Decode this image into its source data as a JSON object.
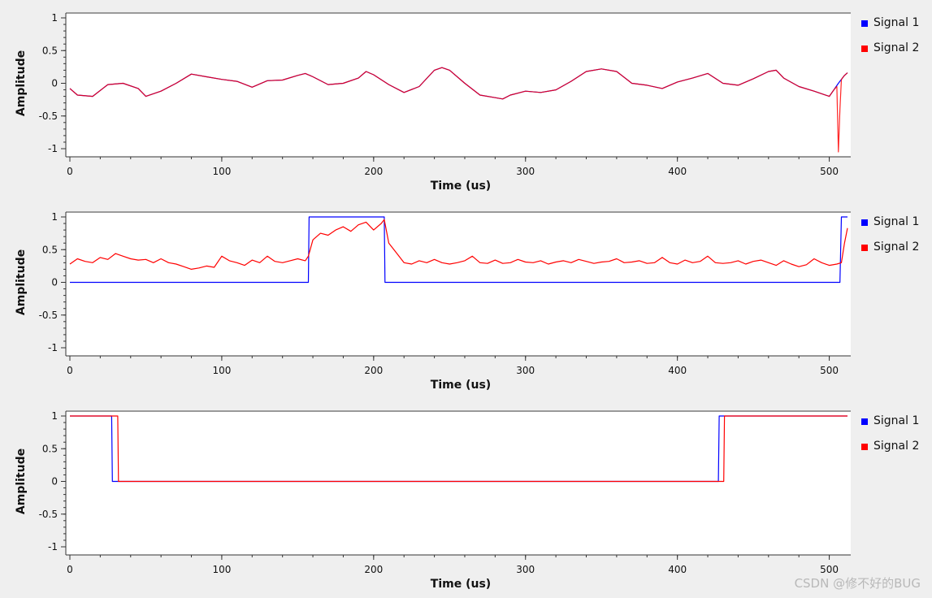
{
  "chart_data": [
    {
      "type": "line",
      "xlabel": "Time (us)",
      "ylabel": "Amplitude",
      "xlim": [
        0,
        512
      ],
      "ylim": [
        -1,
        1
      ],
      "xticks": [
        0,
        100,
        200,
        300,
        400,
        500
      ],
      "yticks": [
        1,
        0.5,
        0,
        -0.5,
        -1
      ],
      "ytick_labels": [
        "1",
        "0.5",
        "0",
        "-0.5",
        "-1"
      ],
      "legend_position": "right",
      "series": [
        {
          "name": "Signal 1",
          "color": "#0000ff",
          "x": [
            0,
            5,
            15,
            25,
            35,
            45,
            50,
            60,
            70,
            80,
            90,
            100,
            110,
            120,
            130,
            140,
            150,
            155,
            160,
            170,
            180,
            190,
            195,
            200,
            210,
            220,
            230,
            240,
            245,
            250,
            260,
            270,
            280,
            285,
            290,
            300,
            310,
            320,
            330,
            340,
            350,
            360,
            370,
            380,
            390,
            400,
            410,
            420,
            430,
            440,
            450,
            460,
            465,
            470,
            480,
            490,
            500,
            503,
            506,
            508,
            510,
            512
          ],
          "y": [
            -0.08,
            -0.18,
            -0.2,
            -0.02,
            0,
            -0.08,
            -0.2,
            -0.12,
            0,
            0.14,
            0.1,
            0.06,
            0.03,
            -0.06,
            0.04,
            0.05,
            0.12,
            0.15,
            0.1,
            -0.02,
            0.0,
            0.08,
            0.18,
            0.13,
            -0.02,
            -0.14,
            -0.05,
            0.2,
            0.24,
            0.2,
            0.0,
            -0.18,
            -0.22,
            -0.24,
            -0.18,
            -0.12,
            -0.14,
            -0.1,
            0.03,
            0.18,
            0.22,
            0.18,
            0.0,
            -0.03,
            -0.08,
            0.02,
            0.08,
            0.15,
            0.0,
            -0.03,
            0.07,
            0.18,
            0.2,
            0.08,
            -0.05,
            -0.12,
            -0.2,
            -0.1,
            0.0,
            0.06,
            0.12,
            0.16
          ]
        },
        {
          "name": "Signal 2",
          "color": "#ff0000",
          "x": [
            0,
            5,
            15,
            25,
            35,
            45,
            50,
            60,
            70,
            80,
            90,
            100,
            110,
            120,
            130,
            140,
            150,
            155,
            160,
            170,
            180,
            190,
            195,
            200,
            210,
            220,
            230,
            240,
            245,
            250,
            260,
            270,
            280,
            285,
            290,
            300,
            310,
            320,
            330,
            340,
            350,
            360,
            370,
            380,
            390,
            400,
            410,
            420,
            430,
            440,
            450,
            460,
            465,
            470,
            480,
            490,
            500,
            503,
            505,
            506,
            507,
            508,
            510,
            512
          ],
          "y": [
            -0.08,
            -0.18,
            -0.2,
            -0.02,
            0,
            -0.08,
            -0.2,
            -0.12,
            0,
            0.14,
            0.1,
            0.06,
            0.03,
            -0.06,
            0.04,
            0.05,
            0.12,
            0.15,
            0.1,
            -0.02,
            0.0,
            0.08,
            0.18,
            0.13,
            -0.02,
            -0.14,
            -0.05,
            0.2,
            0.24,
            0.2,
            0.0,
            -0.18,
            -0.22,
            -0.24,
            -0.18,
            -0.12,
            -0.14,
            -0.1,
            0.03,
            0.18,
            0.22,
            0.18,
            0.0,
            -0.03,
            -0.08,
            0.02,
            0.08,
            0.15,
            0.0,
            -0.03,
            0.07,
            0.18,
            0.2,
            0.08,
            -0.05,
            -0.12,
            -0.2,
            -0.1,
            -0.05,
            -1.05,
            -0.4,
            0.06,
            0.12,
            0.16
          ]
        }
      ]
    },
    {
      "type": "line",
      "xlabel": "Time (us)",
      "ylabel": "Amplitude",
      "xlim": [
        0,
        512
      ],
      "ylim": [
        -1,
        1
      ],
      "xticks": [
        0,
        100,
        200,
        300,
        400,
        500
      ],
      "yticks": [
        1,
        0.5,
        0,
        -0.5,
        -1
      ],
      "ytick_labels": [
        "1",
        "0.5",
        "0",
        "-0.5",
        "-1"
      ],
      "legend_position": "right",
      "series": [
        {
          "name": "Signal 1",
          "color": "#0000ff",
          "x": [
            0,
            157,
            157.5,
            207,
            207.5,
            507,
            508,
            512
          ],
          "y": [
            0,
            0,
            1,
            1,
            0,
            0,
            1,
            1
          ]
        },
        {
          "name": "Signal 2",
          "color": "#ff0000",
          "x": [
            0,
            5,
            10,
            15,
            20,
            25,
            30,
            35,
            40,
            45,
            50,
            55,
            60,
            65,
            70,
            75,
            80,
            85,
            90,
            95,
            100,
            105,
            110,
            115,
            120,
            125,
            130,
            135,
            140,
            145,
            150,
            155,
            157,
            160,
            165,
            170,
            175,
            180,
            185,
            190,
            195,
            200,
            205,
            207,
            210,
            215,
            220,
            225,
            230,
            235,
            240,
            245,
            250,
            255,
            260,
            265,
            270,
            275,
            280,
            285,
            290,
            295,
            300,
            305,
            310,
            315,
            320,
            325,
            330,
            335,
            340,
            345,
            350,
            355,
            360,
            365,
            370,
            375,
            380,
            385,
            390,
            395,
            400,
            405,
            410,
            415,
            420,
            425,
            430,
            435,
            440,
            445,
            450,
            455,
            460,
            465,
            470,
            475,
            480,
            485,
            490,
            495,
            500,
            505,
            508,
            510,
            512
          ],
          "y": [
            0.28,
            0.36,
            0.32,
            0.3,
            0.38,
            0.35,
            0.44,
            0.4,
            0.36,
            0.34,
            0.35,
            0.3,
            0.36,
            0.3,
            0.28,
            0.24,
            0.2,
            0.22,
            0.25,
            0.23,
            0.4,
            0.33,
            0.3,
            0.26,
            0.34,
            0.3,
            0.4,
            0.32,
            0.3,
            0.33,
            0.36,
            0.33,
            0.4,
            0.65,
            0.75,
            0.72,
            0.8,
            0.85,
            0.78,
            0.88,
            0.92,
            0.8,
            0.9,
            0.96,
            0.6,
            0.45,
            0.3,
            0.28,
            0.33,
            0.3,
            0.35,
            0.3,
            0.28,
            0.3,
            0.33,
            0.4,
            0.3,
            0.29,
            0.34,
            0.29,
            0.3,
            0.35,
            0.31,
            0.3,
            0.33,
            0.28,
            0.31,
            0.33,
            0.3,
            0.35,
            0.32,
            0.29,
            0.31,
            0.32,
            0.36,
            0.3,
            0.31,
            0.33,
            0.29,
            0.3,
            0.38,
            0.3,
            0.28,
            0.34,
            0.3,
            0.32,
            0.4,
            0.3,
            0.29,
            0.3,
            0.33,
            0.28,
            0.32,
            0.34,
            0.3,
            0.26,
            0.33,
            0.28,
            0.24,
            0.27,
            0.36,
            0.3,
            0.26,
            0.28,
            0.3,
            0.6,
            0.83
          ]
        }
      ]
    },
    {
      "type": "line",
      "xlabel": "Time (us)",
      "ylabel": "Amplitude",
      "xlim": [
        0,
        512
      ],
      "ylim": [
        -1,
        1
      ],
      "xticks": [
        0,
        100,
        200,
        300,
        400,
        500
      ],
      "yticks": [
        1,
        0.5,
        0,
        -0.5,
        -1
      ],
      "ytick_labels": [
        "1",
        "0.5",
        "0",
        "-0.5",
        "-1"
      ],
      "legend_position": "right",
      "series": [
        {
          "name": "Signal 1",
          "color": "#0000ff",
          "x": [
            0,
            27.5,
            28,
            427,
            427.5,
            512
          ],
          "y": [
            1,
            1,
            0,
            0,
            1,
            1
          ]
        },
        {
          "name": "Signal 2",
          "color": "#ff0000",
          "x": [
            0,
            31.5,
            32,
            430.5,
            431,
            512
          ],
          "y": [
            1,
            1,
            0,
            0,
            1,
            1
          ]
        }
      ]
    }
  ],
  "watermark": "CSDN @修不好的BUG"
}
